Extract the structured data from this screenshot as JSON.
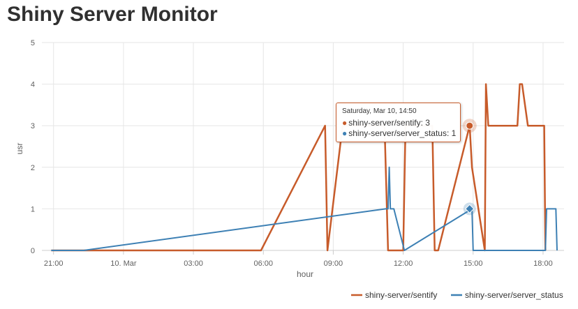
{
  "page": {
    "title": "Shiny Server Monitor"
  },
  "colors": {
    "sentify": "#c75b2a",
    "server_status": "#3d80b4",
    "grid": "#e6e6e6"
  },
  "tooltip": {
    "header": "Saturday, Mar 10, 14:50",
    "rows": [
      {
        "label": "shiny-server/sentify: 3",
        "color": "#c75b2a",
        "icon": "circle-icon"
      },
      {
        "label": "shiny-server/server_status: 1",
        "color": "#3d80b4",
        "icon": "circle-icon"
      }
    ]
  },
  "chart_data": {
    "type": "line",
    "xlabel": "hour",
    "ylabel": "usr",
    "ylim": [
      0,
      5
    ],
    "xlim": [
      20.5,
      42.9
    ],
    "x_unit": "hours since midnight Mar 9 (24 = 00:00 Mar 10)",
    "x_ticks": [
      {
        "x": 21,
        "label": "21:00"
      },
      {
        "x": 24,
        "label": "10. Mar"
      },
      {
        "x": 27,
        "label": "03:00"
      },
      {
        "x": 30,
        "label": "06:00"
      },
      {
        "x": 33,
        "label": "09:00"
      },
      {
        "x": 36,
        "label": "12:00"
      },
      {
        "x": 39,
        "label": "15:00"
      },
      {
        "x": 42,
        "label": "18:00"
      }
    ],
    "y_ticks": [
      0,
      1,
      2,
      3,
      4,
      5
    ],
    "legend_position": "bottom-right",
    "series": [
      {
        "name": "shiny-server/sentify",
        "color": "#c75b2a",
        "points": [
          [
            20.9,
            0
          ],
          [
            29.9,
            0
          ],
          [
            32.65,
            3
          ],
          [
            32.75,
            0
          ],
          [
            33.4,
            3
          ],
          [
            35.2,
            3
          ],
          [
            35.35,
            0
          ],
          [
            36.0,
            0
          ],
          [
            36.1,
            3
          ],
          [
            37.25,
            3
          ],
          [
            37.35,
            0
          ],
          [
            37.5,
            0
          ],
          [
            38.85,
            3
          ],
          [
            38.95,
            2
          ],
          [
            39.5,
            0
          ],
          [
            39.55,
            4
          ],
          [
            39.65,
            3
          ],
          [
            40.9,
            3
          ],
          [
            41.0,
            4
          ],
          [
            41.1,
            4
          ],
          [
            41.35,
            3
          ],
          [
            42.05,
            3
          ],
          [
            42.1,
            0
          ],
          [
            42.1,
            0
          ]
        ]
      },
      {
        "name": "shiny-server/server_status",
        "color": "#3d80b4",
        "points": [
          [
            20.9,
            0
          ],
          [
            22.3,
            0
          ],
          [
            35.25,
            1
          ],
          [
            35.35,
            1
          ],
          [
            35.4,
            2
          ],
          [
            35.45,
            1
          ],
          [
            35.6,
            1
          ],
          [
            36.05,
            0
          ],
          [
            38.95,
            1
          ],
          [
            39.0,
            0
          ],
          [
            42.1,
            0
          ],
          [
            42.15,
            1
          ],
          [
            42.55,
            1
          ],
          [
            42.6,
            0
          ]
        ]
      }
    ],
    "highlight": {
      "x": 38.85,
      "values": [
        3,
        1
      ]
    }
  }
}
